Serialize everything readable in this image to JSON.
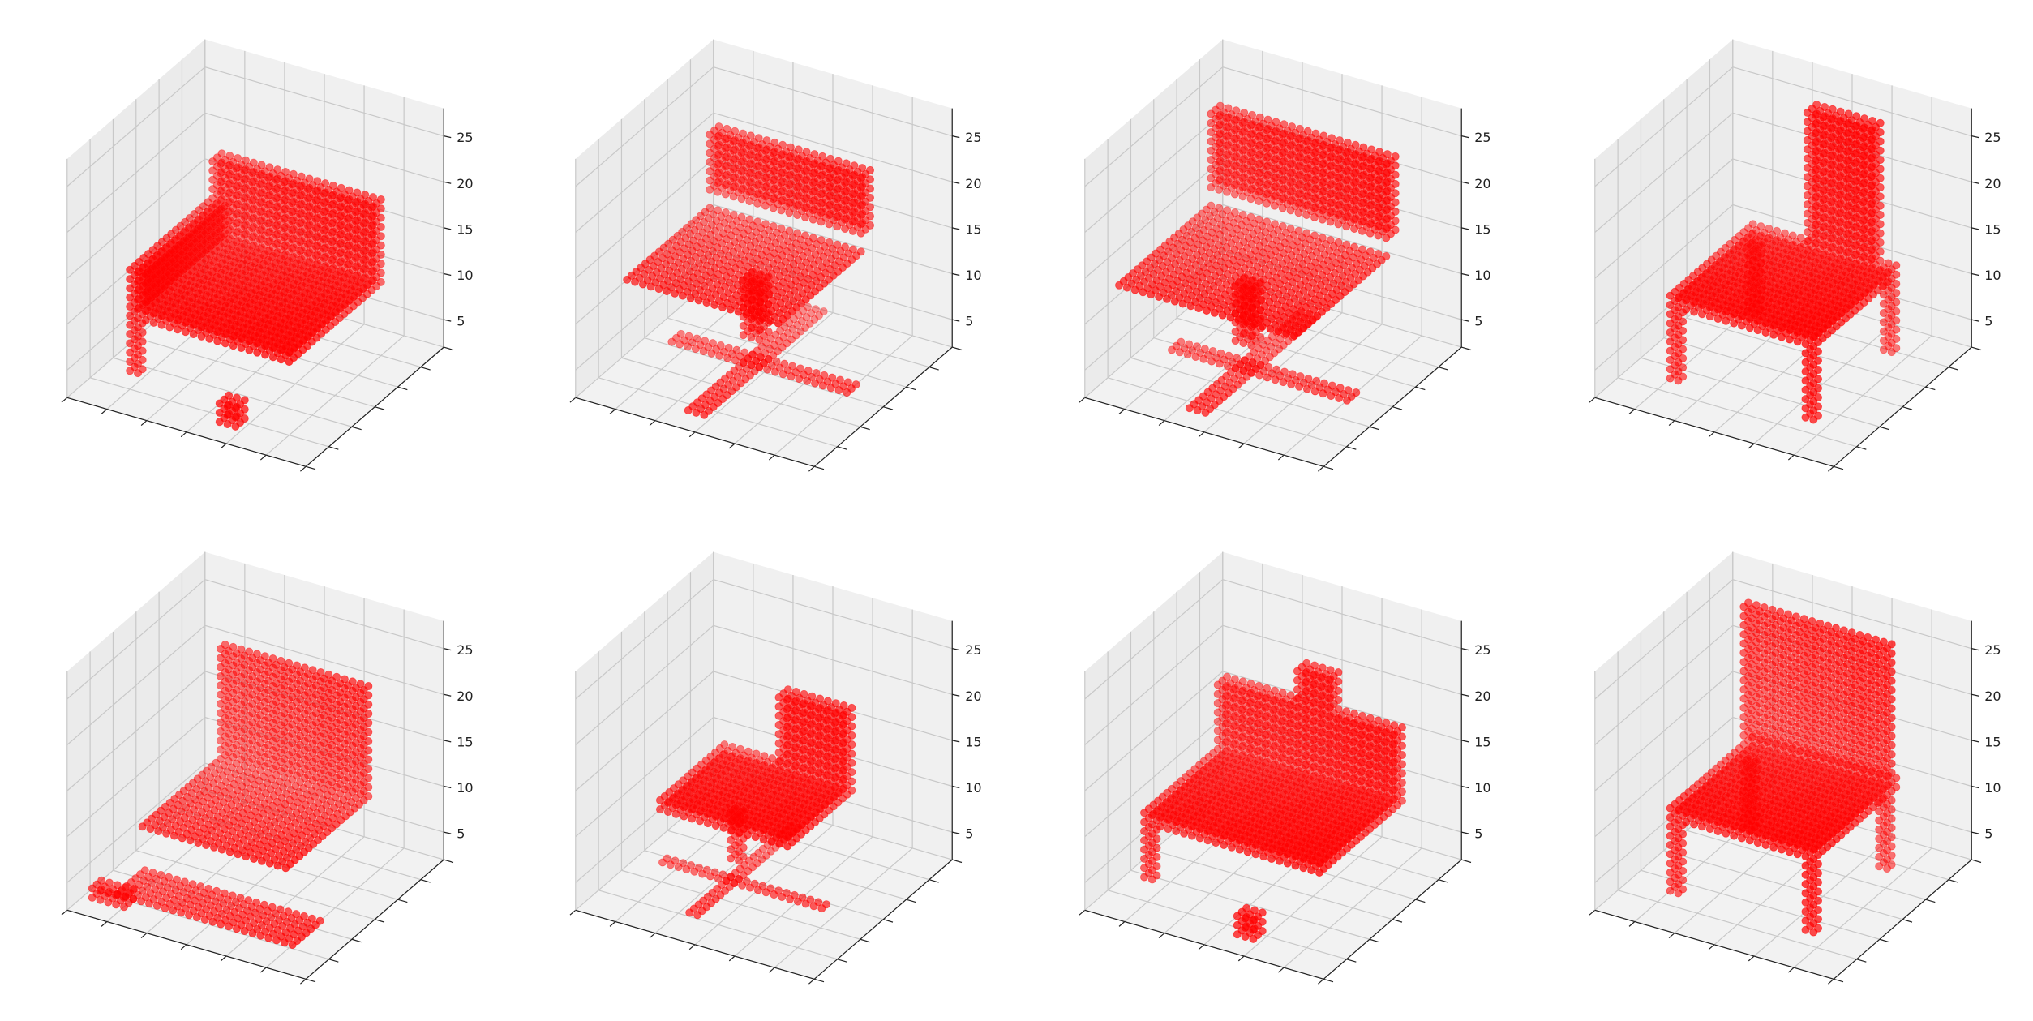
{
  "chart_data": [
    {
      "type": "scatter3d",
      "color": "#ff0000",
      "grid": true,
      "xlim": [
        0,
        30
      ],
      "ylim": [
        0,
        30
      ],
      "zlim": [
        2,
        28
      ],
      "xticks": [
        0,
        5,
        10,
        15,
        20,
        25,
        30
      ],
      "yticks": [
        0,
        5,
        10,
        15,
        20,
        25,
        30
      ],
      "zticks": [
        5,
        10,
        15,
        20,
        25
      ],
      "blocks": [
        {
          "x": [
            5,
            25
          ],
          "y": [
            5,
            25
          ],
          "z": [
            10,
            11
          ]
        },
        {
          "x": [
            5,
            25
          ],
          "y": [
            23,
            25
          ],
          "z": [
            12,
            19
          ]
        },
        {
          "x": [
            5,
            7
          ],
          "y": [
            5,
            22
          ],
          "z": [
            12,
            15
          ]
        },
        {
          "x": [
            5,
            6
          ],
          "y": [
            5,
            6
          ],
          "z": [
            4,
            9
          ]
        },
        {
          "x": [
            18,
            20
          ],
          "y": [
            2,
            4
          ],
          "z": [
            3,
            5
          ]
        }
      ]
    },
    {
      "type": "scatter3d",
      "color": "#ff0000",
      "grid": true,
      "xlim": [
        0,
        30
      ],
      "ylim": [
        0,
        30
      ],
      "zlim": [
        2,
        28
      ],
      "xticks": [
        0,
        5,
        10,
        15,
        20,
        25,
        30
      ],
      "yticks": [
        0,
        5,
        10,
        15,
        20,
        25,
        30
      ],
      "zticks": [
        5,
        10,
        15,
        20,
        25
      ],
      "blocks": [
        {
          "x": [
            3,
            22
          ],
          "y": [
            6,
            24
          ],
          "z": [
            13,
            13
          ]
        },
        {
          "x": [
            3,
            22
          ],
          "y": [
            24,
            26
          ],
          "z": [
            15,
            21
          ]
        },
        {
          "x": [
            13,
            15
          ],
          "y": [
            14,
            16
          ],
          "z": [
            6,
            12
          ]
        },
        {
          "x": [
            4,
            26
          ],
          "y": [
            14,
            16
          ],
          "z": [
            3,
            3
          ]
        },
        {
          "x": [
            13,
            15
          ],
          "y": [
            2,
            28
          ],
          "z": [
            3,
            3
          ]
        }
      ]
    },
    {
      "type": "scatter3d",
      "color": "#ff0000",
      "grid": true,
      "xlim": [
        0,
        30
      ],
      "ylim": [
        0,
        30
      ],
      "zlim": [
        2,
        28
      ],
      "xticks": [
        0,
        5,
        10,
        15,
        20,
        25,
        30
      ],
      "yticks": [
        0,
        5,
        10,
        15,
        20,
        25,
        30
      ],
      "zticks": [
        5,
        10,
        15,
        20,
        25
      ],
      "blocks": [
        {
          "x": [
            2,
            24
          ],
          "y": [
            4,
            24
          ],
          "z": [
            13,
            13
          ]
        },
        {
          "x": [
            2,
            24
          ],
          "y": [
            24,
            26
          ],
          "z": [
            15,
            23
          ]
        },
        {
          "x": [
            12,
            14
          ],
          "y": [
            12,
            14
          ],
          "z": [
            6,
            12
          ]
        },
        {
          "x": [
            4,
            26
          ],
          "y": [
            12,
            14
          ],
          "z": [
            3,
            3
          ]
        },
        {
          "x": [
            12,
            14
          ],
          "y": [
            2,
            26
          ],
          "z": [
            3,
            3
          ]
        }
      ]
    },
    {
      "type": "scatter3d",
      "color": "#ff0000",
      "grid": true,
      "xlim": [
        0,
        30
      ],
      "ylim": [
        0,
        30
      ],
      "zlim": [
        2,
        28
      ],
      "xticks": [
        0,
        5,
        10,
        15,
        20,
        25,
        30
      ],
      "yticks": [
        0,
        5,
        10,
        15,
        20,
        25,
        30
      ],
      "zticks": [
        5,
        10,
        15,
        20,
        25
      ],
      "blocks": [
        {
          "x": [
            6,
            24
          ],
          "y": [
            6,
            24
          ],
          "z": [
            11,
            12
          ]
        },
        {
          "x": [
            14,
            22
          ],
          "y": [
            22,
            24
          ],
          "z": [
            13,
            27
          ]
        },
        {
          "x": [
            6,
            7
          ],
          "y": [
            6,
            7
          ],
          "z": [
            3,
            10
          ]
        },
        {
          "x": [
            23,
            24
          ],
          "y": [
            6,
            7
          ],
          "z": [
            3,
            10
          ]
        },
        {
          "x": [
            6,
            7
          ],
          "y": [
            23,
            24
          ],
          "z": [
            3,
            10
          ]
        },
        {
          "x": [
            23,
            24
          ],
          "y": [
            23,
            24
          ],
          "z": [
            3,
            10
          ]
        }
      ]
    },
    {
      "type": "scatter3d",
      "color": "#ff0000",
      "grid": true,
      "xlim": [
        0,
        30
      ],
      "ylim": [
        0,
        30
      ],
      "zlim": [
        2,
        28
      ],
      "xticks": [
        0,
        5,
        10,
        15,
        20,
        25,
        30
      ],
      "yticks": [
        0,
        5,
        10,
        15,
        20,
        25,
        30
      ],
      "zticks": [
        5,
        10,
        15,
        20,
        25
      ],
      "blocks": [
        {
          "x": [
            6,
            24
          ],
          "y": [
            6,
            24
          ],
          "z": [
            10,
            10
          ]
        },
        {
          "x": [
            6,
            24
          ],
          "y": [
            23,
            24
          ],
          "z": [
            11,
            22
          ]
        },
        {
          "x": [
            4,
            26
          ],
          "y": [
            4,
            10
          ],
          "z": [
            3,
            3
          ]
        },
        {
          "x": [
            2,
            6
          ],
          "y": [
            2,
            4
          ],
          "z": [
            3,
            4
          ]
        }
      ]
    },
    {
      "type": "scatter3d",
      "color": "#ff0000",
      "grid": true,
      "xlim": [
        0,
        30
      ],
      "ylim": [
        0,
        30
      ],
      "zlim": [
        2,
        28
      ],
      "xticks": [
        0,
        5,
        10,
        15,
        20,
        25,
        30
      ],
      "yticks": [
        0,
        5,
        10,
        15,
        20,
        25,
        30
      ],
      "zticks": [
        5,
        10,
        15,
        20,
        25
      ],
      "blocks": [
        {
          "x": [
            6,
            22
          ],
          "y": [
            8,
            22
          ],
          "z": [
            11,
            12
          ]
        },
        {
          "x": [
            14,
            22
          ],
          "y": [
            20,
            22
          ],
          "z": [
            13,
            20
          ]
        },
        {
          "x": [
            12,
            13
          ],
          "y": [
            13,
            14
          ],
          "z": [
            5,
            10
          ]
        },
        {
          "x": [
            4,
            24
          ],
          "y": [
            12,
            13
          ],
          "z": [
            3,
            3
          ]
        },
        {
          "x": [
            12,
            13
          ],
          "y": [
            4,
            26
          ],
          "z": [
            3,
            3
          ]
        }
      ]
    },
    {
      "type": "scatter3d",
      "color": "#ff0000",
      "grid": true,
      "xlim": [
        0,
        30
      ],
      "ylim": [
        0,
        30
      ],
      "zlim": [
        2,
        28
      ],
      "xticks": [
        0,
        5,
        10,
        15,
        20,
        25,
        30
      ],
      "yticks": [
        0,
        5,
        10,
        15,
        20,
        25,
        30
      ],
      "zticks": [
        5,
        10,
        15,
        20,
        25
      ],
      "blocks": [
        {
          "x": [
            4,
            26
          ],
          "y": [
            6,
            24
          ],
          "z": [
            10,
            11
          ]
        },
        {
          "x": [
            4,
            26
          ],
          "y": [
            22,
            24
          ],
          "z": [
            12,
            18
          ]
        },
        {
          "x": [
            14,
            18
          ],
          "y": [
            22,
            24
          ],
          "z": [
            19,
            22
          ]
        },
        {
          "x": [
            4,
            5
          ],
          "y": [
            6,
            7
          ],
          "z": [
            4,
            9
          ]
        },
        {
          "x": [
            18,
            20
          ],
          "y": [
            2,
            4
          ],
          "z": [
            3,
            5
          ]
        }
      ]
    },
    {
      "type": "scatter3d",
      "color": "#ff0000",
      "grid": true,
      "xlim": [
        0,
        30
      ],
      "ylim": [
        0,
        30
      ],
      "zlim": [
        2,
        28
      ],
      "xticks": [
        0,
        5,
        10,
        15,
        20,
        25,
        30
      ],
      "yticks": [
        0,
        5,
        10,
        15,
        20,
        25,
        30
      ],
      "zticks": [
        5,
        10,
        15,
        20,
        25
      ],
      "blocks": [
        {
          "x": [
            6,
            24
          ],
          "y": [
            6,
            24
          ],
          "z": [
            11,
            12
          ]
        },
        {
          "x": [
            6,
            24
          ],
          "y": [
            22,
            23
          ],
          "z": [
            13,
            27
          ]
        },
        {
          "x": [
            6,
            7
          ],
          "y": [
            6,
            7
          ],
          "z": [
            3,
            10
          ]
        },
        {
          "x": [
            23,
            24
          ],
          "y": [
            6,
            7
          ],
          "z": [
            3,
            10
          ]
        },
        {
          "x": [
            6,
            7
          ],
          "y": [
            22,
            23
          ],
          "z": [
            3,
            10
          ]
        },
        {
          "x": [
            23,
            24
          ],
          "y": [
            22,
            23
          ],
          "z": [
            3,
            10
          ]
        }
      ]
    }
  ]
}
